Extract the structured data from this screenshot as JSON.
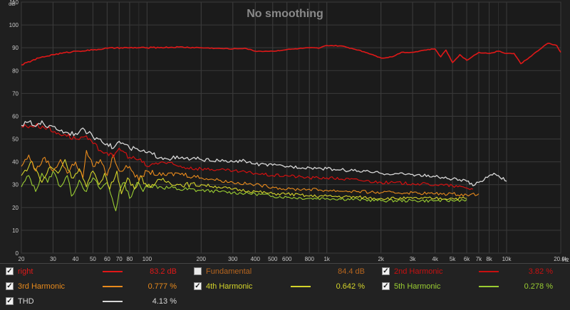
{
  "chart_data": {
    "type": "line",
    "title": "No smoothing",
    "ylabel": "dB",
    "xunit": "Hz",
    "xscale": "log",
    "xlim": [
      20,
      20000
    ],
    "ylim": [
      0,
      110
    ],
    "yticks": [
      0,
      10,
      20,
      30,
      40,
      50,
      60,
      70,
      80,
      90,
      100,
      110
    ],
    "xticks": [
      {
        "v": 20,
        "label": "20"
      },
      {
        "v": 30,
        "label": "30"
      },
      {
        "v": 40,
        "label": "40"
      },
      {
        "v": 50,
        "label": "50"
      },
      {
        "v": 60,
        "label": "60"
      },
      {
        "v": 70,
        "label": "70"
      },
      {
        "v": 80,
        "label": "80"
      },
      {
        "v": 100,
        "label": "100"
      },
      {
        "v": 200,
        "label": "200"
      },
      {
        "v": 300,
        "label": "300"
      },
      {
        "v": 400,
        "label": "400"
      },
      {
        "v": 500,
        "label": "500"
      },
      {
        "v": 600,
        "label": "600"
      },
      {
        "v": 800,
        "label": "800"
      },
      {
        "v": 1000,
        "label": "1k"
      },
      {
        "v": 2000,
        "label": "2k"
      },
      {
        "v": 3000,
        "label": "3k"
      },
      {
        "v": 4000,
        "label": "4k"
      },
      {
        "v": 5000,
        "label": "5k"
      },
      {
        "v": 6000,
        "label": "6k"
      },
      {
        "v": 7000,
        "label": "7k"
      },
      {
        "v": 8000,
        "label": "8k"
      },
      {
        "v": 10000,
        "label": "10k"
      },
      {
        "v": 20000,
        "label": "20.0k"
      }
    ],
    "grid": true,
    "legend_position": "bottom",
    "series": [
      {
        "name": "right",
        "color": "#e01818",
        "width": 1.6,
        "points": [
          [
            20,
            82.5
          ],
          [
            25,
            85.5
          ],
          [
            30,
            87
          ],
          [
            40,
            88.5
          ],
          [
            50,
            89
          ],
          [
            60,
            89.8
          ],
          [
            80,
            90
          ],
          [
            100,
            90
          ],
          [
            150,
            90.3
          ],
          [
            200,
            90
          ],
          [
            300,
            89.5
          ],
          [
            350,
            89.8
          ],
          [
            400,
            88.5
          ],
          [
            500,
            88.5
          ],
          [
            600,
            89.2
          ],
          [
            800,
            90
          ],
          [
            900,
            89.8
          ],
          [
            1000,
            91
          ],
          [
            1200,
            90.8
          ],
          [
            1500,
            89
          ],
          [
            1800,
            87
          ],
          [
            2000,
            85.5
          ],
          [
            2300,
            86
          ],
          [
            2600,
            88
          ],
          [
            3000,
            88
          ],
          [
            3500,
            89
          ],
          [
            4000,
            89.5
          ],
          [
            4300,
            86
          ],
          [
            4600,
            89
          ],
          [
            5000,
            83.5
          ],
          [
            5500,
            87
          ],
          [
            6000,
            84.5
          ],
          [
            7000,
            88
          ],
          [
            8000,
            87.5
          ],
          [
            9000,
            88.5
          ],
          [
            10000,
            87.5
          ],
          [
            11000,
            87.5
          ],
          [
            12000,
            83
          ],
          [
            14000,
            87
          ],
          [
            17000,
            92
          ],
          [
            19000,
            91
          ],
          [
            20000,
            88
          ]
        ]
      },
      {
        "name": "THD",
        "color": "#d8d8d8",
        "width": 1.3,
        "points": [
          [
            20,
            56
          ],
          [
            22,
            57.5
          ],
          [
            24,
            55.5
          ],
          [
            26,
            58
          ],
          [
            28,
            55
          ],
          [
            30,
            55.5
          ],
          [
            35,
            53
          ],
          [
            40,
            52.5
          ],
          [
            45,
            54
          ],
          [
            50,
            51
          ],
          [
            55,
            50
          ],
          [
            60,
            48
          ],
          [
            65,
            46
          ],
          [
            70,
            49
          ],
          [
            80,
            46
          ],
          [
            90,
            45
          ],
          [
            100,
            44
          ],
          [
            120,
            42
          ],
          [
            150,
            41.5
          ],
          [
            200,
            41
          ],
          [
            250,
            40.5
          ],
          [
            300,
            40
          ],
          [
            350,
            40.5
          ],
          [
            400,
            39
          ],
          [
            500,
            38.5
          ],
          [
            600,
            38
          ],
          [
            800,
            37.5
          ],
          [
            1000,
            37
          ],
          [
            1200,
            36.5
          ],
          [
            1500,
            36
          ],
          [
            2000,
            35
          ],
          [
            3000,
            34.5
          ],
          [
            4000,
            33.5
          ],
          [
            5000,
            32.5
          ],
          [
            6000,
            31.5
          ],
          [
            6500,
            29.5
          ],
          [
            7000,
            31
          ],
          [
            8000,
            34
          ],
          [
            8500,
            35
          ],
          [
            9000,
            34
          ],
          [
            10000,
            31.5
          ]
        ]
      },
      {
        "name": "2nd Harmonic",
        "color": "#d41010",
        "width": 1.2,
        "points": [
          [
            20,
            55.5
          ],
          [
            24,
            56
          ],
          [
            28,
            55
          ],
          [
            30,
            53
          ],
          [
            35,
            52
          ],
          [
            40,
            50
          ],
          [
            45,
            51
          ],
          [
            50,
            48
          ],
          [
            55,
            45
          ],
          [
            60,
            44
          ],
          [
            65,
            42
          ],
          [
            70,
            46
          ],
          [
            80,
            42
          ],
          [
            90,
            41
          ],
          [
            100,
            38
          ],
          [
            120,
            40
          ],
          [
            150,
            38
          ],
          [
            200,
            37
          ],
          [
            250,
            36.5
          ],
          [
            300,
            36
          ],
          [
            400,
            35
          ],
          [
            500,
            34
          ],
          [
            600,
            34
          ],
          [
            800,
            33
          ],
          [
            1000,
            33
          ],
          [
            1500,
            32
          ],
          [
            2000,
            31
          ],
          [
            3000,
            30.5
          ],
          [
            4000,
            30
          ],
          [
            5000,
            29.5
          ],
          [
            6000,
            28.5
          ],
          [
            6500,
            28
          ]
        ]
      },
      {
        "name": "3rd Harmonic",
        "color": "#e88a1c",
        "width": 1.1,
        "points": [
          [
            20,
            38
          ],
          [
            22,
            43
          ],
          [
            24,
            36
          ],
          [
            27,
            42
          ],
          [
            30,
            36
          ],
          [
            33,
            41
          ],
          [
            36,
            35
          ],
          [
            40,
            40
          ],
          [
            44,
            33
          ],
          [
            46,
            45
          ],
          [
            50,
            38
          ],
          [
            55,
            41
          ],
          [
            60,
            34
          ],
          [
            65,
            43
          ],
          [
            70,
            36
          ],
          [
            80,
            38
          ],
          [
            90,
            32
          ],
          [
            100,
            36
          ],
          [
            120,
            34
          ],
          [
            150,
            35
          ],
          [
            200,
            33
          ],
          [
            250,
            32
          ],
          [
            300,
            31
          ],
          [
            400,
            30
          ],
          [
            500,
            29
          ],
          [
            600,
            28
          ],
          [
            800,
            28
          ],
          [
            1000,
            27.5
          ],
          [
            1500,
            27
          ],
          [
            2000,
            26.5
          ],
          [
            3000,
            26.5
          ],
          [
            4000,
            26
          ],
          [
            5000,
            26
          ],
          [
            6000,
            25.5
          ],
          [
            7000,
            26
          ]
        ]
      },
      {
        "name": "4th Harmonic",
        "color": "#d4d42a",
        "width": 1.1,
        "points": [
          [
            20,
            34
          ],
          [
            23,
            40
          ],
          [
            26,
            31
          ],
          [
            29,
            38
          ],
          [
            32,
            35
          ],
          [
            35,
            41
          ],
          [
            38,
            33
          ],
          [
            42,
            37
          ],
          [
            46,
            29
          ],
          [
            50,
            36
          ],
          [
            54,
            30
          ],
          [
            58,
            35
          ],
          [
            62,
            28
          ],
          [
            68,
            36
          ],
          [
            72,
            26
          ],
          [
            78,
            33
          ],
          [
            85,
            28
          ],
          [
            92,
            34
          ],
          [
            100,
            29
          ],
          [
            120,
            32
          ],
          [
            150,
            30
          ],
          [
            200,
            30
          ],
          [
            250,
            29
          ],
          [
            300,
            28
          ],
          [
            400,
            27
          ],
          [
            500,
            26
          ],
          [
            600,
            26
          ],
          [
            800,
            25
          ],
          [
            1000,
            25
          ],
          [
            1500,
            24.5
          ],
          [
            2000,
            24
          ],
          [
            3000,
            24
          ],
          [
            4000,
            24
          ],
          [
            5000,
            24
          ],
          [
            6000,
            24
          ]
        ]
      },
      {
        "name": "5th Harmonic",
        "color": "#9acd32",
        "width": 1.1,
        "points": [
          [
            20,
            29
          ],
          [
            22,
            34
          ],
          [
            24,
            27
          ],
          [
            26,
            35
          ],
          [
            28,
            31
          ],
          [
            30,
            36
          ],
          [
            33,
            29
          ],
          [
            36,
            34
          ],
          [
            38,
            25
          ],
          [
            42,
            32
          ],
          [
            46,
            27
          ],
          [
            50,
            33
          ],
          [
            55,
            28
          ],
          [
            60,
            31
          ],
          [
            64,
            24
          ],
          [
            67,
            18.5
          ],
          [
            70,
            27
          ],
          [
            75,
            31
          ],
          [
            80,
            24
          ],
          [
            88,
            31
          ],
          [
            95,
            27
          ],
          [
            100,
            30
          ],
          [
            120,
            29
          ],
          [
            150,
            28
          ],
          [
            200,
            27.5
          ],
          [
            250,
            27
          ],
          [
            300,
            26.5
          ],
          [
            400,
            26
          ],
          [
            500,
            25
          ],
          [
            600,
            24.5
          ],
          [
            800,
            24
          ],
          [
            1000,
            24
          ],
          [
            1500,
            23.5
          ],
          [
            2000,
            23
          ],
          [
            3000,
            23
          ],
          [
            4000,
            23
          ],
          [
            5000,
            23
          ],
          [
            6000,
            23.5
          ]
        ]
      }
    ]
  },
  "legend": {
    "items": [
      {
        "label": "right",
        "value": "83.2 dB",
        "color": "#e01818",
        "checked": true
      },
      {
        "label": "Fundamental",
        "value": "84.4 dB",
        "color": "#b7651e",
        "checked": false
      },
      {
        "label": "2nd Harmonic",
        "value": "3.82 %",
        "color": "#c81010",
        "checked": true
      },
      {
        "label": "3rd Harmonic",
        "value": "0.777 %",
        "color": "#e88a1c",
        "checked": true
      },
      {
        "label": "4th Harmonic",
        "value": "0.642 %",
        "color": "#d4d42a",
        "checked": true
      },
      {
        "label": "5th Harmonic",
        "value": "0.278 %",
        "color": "#9acd32",
        "checked": true
      },
      {
        "label": "THD",
        "value": "4.13 %",
        "color": "#d8d8d8",
        "checked": true
      }
    ]
  }
}
